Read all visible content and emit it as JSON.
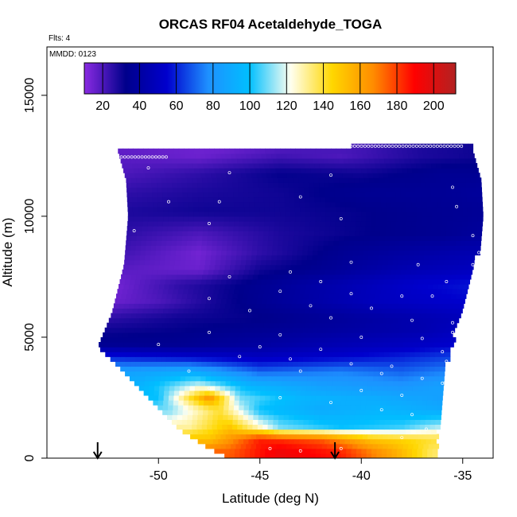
{
  "chart_data": {
    "type": "heatmap",
    "title": "ORCAS RF04 Acetaldehyde_TOGA",
    "flights_label": "Flts: 4",
    "date_label": "MMDD: 0123",
    "xlabel": "Latitude (deg N)",
    "ylabel": "Altitude (m)",
    "xlim": [
      -55.5,
      -33.5
    ],
    "ylim": [
      0,
      17000
    ],
    "x_ticks": [
      -50,
      -45,
      -40,
      -35
    ],
    "y_ticks": [
      0,
      5000,
      10000,
      15000
    ],
    "colorbar": {
      "range": [
        10,
        212
      ],
      "ticks": [
        20,
        40,
        60,
        80,
        100,
        120,
        140,
        160,
        180,
        200
      ],
      "colors": [
        "#8a2be2",
        "#00008b",
        "#0000cd",
        "#1e90ff",
        "#00bfff",
        "#fffff0",
        "#ffd700",
        "#ff8c00",
        "#ff0000",
        "#b22222"
      ]
    },
    "arrow_latitudes": [
      -53.0,
      -41.3
    ],
    "envelope": {
      "left": [
        [
          0,
          -46.5
        ],
        [
          400,
          -47.5
        ],
        [
          1200,
          -49.0
        ],
        [
          2500,
          -50.5
        ],
        [
          3800,
          -52.0
        ],
        [
          4600,
          -53.0
        ],
        [
          6000,
          -52.3
        ],
        [
          8000,
          -51.7
        ],
        [
          10000,
          -51.5
        ],
        [
          11500,
          -51.6
        ],
        [
          12700,
          -52.0
        ]
      ],
      "right": [
        [
          0,
          -36.5
        ],
        [
          1500,
          -36.3
        ],
        [
          3000,
          -36.2
        ],
        [
          4500,
          -35.7
        ],
        [
          6000,
          -35.2
        ],
        [
          8000,
          -34.5
        ],
        [
          10000,
          -34.0
        ],
        [
          11500,
          -34.2
        ],
        [
          13000,
          -34.6
        ]
      ]
    },
    "bands": [
      {
        "alt": 250,
        "pts": [
          [
            -46.5,
            175
          ],
          [
            -44.0,
            195
          ],
          [
            -41.0,
            185
          ],
          [
            -38.5,
            160
          ],
          [
            -36.5,
            135
          ]
        ]
      },
      {
        "alt": 800,
        "pts": [
          [
            -47.5,
            150
          ],
          [
            -45.0,
            185
          ],
          [
            -42.0,
            175
          ],
          [
            -39.5,
            150
          ],
          [
            -36.5,
            140
          ]
        ]
      },
      {
        "alt": 1300,
        "pts": [
          [
            -48.5,
            130
          ],
          [
            -46.5,
            150
          ],
          [
            -44.0,
            110
          ],
          [
            -41.0,
            100
          ],
          [
            -38.0,
            105
          ],
          [
            -36.3,
            115
          ]
        ]
      },
      {
        "alt": 2000,
        "pts": [
          [
            -49.5,
            110
          ],
          [
            -47.0,
            140
          ],
          [
            -45.0,
            100
          ],
          [
            -42.0,
            90
          ],
          [
            -39.0,
            95
          ],
          [
            -36.2,
            90
          ]
        ]
      },
      {
        "alt": 2500,
        "pts": [
          [
            -50.0,
            100
          ],
          [
            -47.5,
            165
          ],
          [
            -46.0,
            110
          ],
          [
            -43.0,
            95
          ],
          [
            -39.0,
            90
          ],
          [
            -36.2,
            85
          ]
        ]
      },
      {
        "alt": 3000,
        "pts": [
          [
            -50.8,
            95
          ],
          [
            -48.0,
            120
          ],
          [
            -45.5,
            95
          ],
          [
            -42.0,
            85
          ],
          [
            -38.0,
            80
          ],
          [
            -36.2,
            85
          ]
        ]
      },
      {
        "alt": 3600,
        "pts": [
          [
            -51.5,
            85
          ],
          [
            -48.5,
            90
          ],
          [
            -45.0,
            70
          ],
          [
            -41.0,
            75
          ],
          [
            -38.0,
            70
          ],
          [
            -35.8,
            75
          ]
        ]
      },
      {
        "alt": 4200,
        "pts": [
          [
            -52.5,
            60
          ],
          [
            -49.0,
            55
          ],
          [
            -45.0,
            50
          ],
          [
            -41.0,
            55
          ],
          [
            -38.0,
            60
          ],
          [
            -35.5,
            65
          ]
        ]
      },
      {
        "alt": 4700,
        "pts": [
          [
            -53.0,
            35
          ],
          [
            -49.0,
            35
          ],
          [
            -45.0,
            40
          ],
          [
            -42.0,
            45
          ],
          [
            -38.0,
            50
          ],
          [
            -35.3,
            55
          ]
        ]
      },
      {
        "alt": 5300,
        "pts": [
          [
            -53.0,
            30
          ],
          [
            -49.0,
            32
          ],
          [
            -45.0,
            35
          ],
          [
            -41.0,
            40
          ],
          [
            -37.0,
            45
          ],
          [
            -35.2,
            50
          ]
        ]
      },
      {
        "alt": 5800,
        "pts": [
          [
            -52.7,
            25
          ],
          [
            -49.0,
            30
          ],
          [
            -45.0,
            32
          ],
          [
            -41.0,
            38
          ],
          [
            -37.0,
            45
          ],
          [
            -35.2,
            48
          ]
        ]
      },
      {
        "alt": 6500,
        "pts": [
          [
            -52.3,
            15
          ],
          [
            -50.0,
            20
          ],
          [
            -47.0,
            30
          ],
          [
            -43.0,
            40
          ],
          [
            -39.0,
            50
          ],
          [
            -35.0,
            55
          ]
        ]
      },
      {
        "alt": 7200,
        "pts": [
          [
            -52.0,
            14
          ],
          [
            -49.0,
            25
          ],
          [
            -45.0,
            35
          ],
          [
            -41.0,
            45
          ],
          [
            -37.0,
            55
          ],
          [
            -34.8,
            58
          ]
        ]
      },
      {
        "alt": 7800,
        "pts": [
          [
            -51.8,
            18
          ],
          [
            -48.0,
            15
          ],
          [
            -45.0,
            30
          ],
          [
            -42.0,
            35
          ],
          [
            -38.0,
            45
          ],
          [
            -34.6,
            50
          ]
        ]
      },
      {
        "alt": 8500,
        "pts": [
          [
            -51.7,
            22
          ],
          [
            -48.0,
            14
          ],
          [
            -45.0,
            25
          ],
          [
            -41.0,
            35
          ],
          [
            -38.0,
            40
          ],
          [
            -34.5,
            45
          ]
        ]
      },
      {
        "alt": 9300,
        "pts": [
          [
            -51.6,
            25
          ],
          [
            -48.0,
            20
          ],
          [
            -44.0,
            28
          ],
          [
            -40.0,
            32
          ],
          [
            -36.0,
            35
          ],
          [
            -34.2,
            38
          ]
        ]
      },
      {
        "alt": 10200,
        "pts": [
          [
            -51.5,
            28
          ],
          [
            -48.0,
            30
          ],
          [
            -44.0,
            30
          ],
          [
            -40.0,
            32
          ],
          [
            -36.0,
            35
          ],
          [
            -34.0,
            36
          ]
        ]
      },
      {
        "alt": 11000,
        "pts": [
          [
            -51.5,
            25
          ],
          [
            -48.0,
            28
          ],
          [
            -44.0,
            30
          ],
          [
            -40.0,
            35
          ],
          [
            -36.0,
            36
          ],
          [
            -34.1,
            38
          ]
        ]
      },
      {
        "alt": 11800,
        "pts": [
          [
            -51.6,
            20
          ],
          [
            -48.0,
            25
          ],
          [
            -44.0,
            32
          ],
          [
            -40.0,
            30
          ],
          [
            -36.0,
            35
          ],
          [
            -34.3,
            35
          ]
        ]
      },
      {
        "alt": 12500,
        "pts": [
          [
            -52.0,
            18
          ],
          [
            -48.0,
            15
          ],
          [
            -44.0,
            22
          ],
          [
            -41.0,
            20
          ],
          [
            -37.0,
            28
          ],
          [
            -34.6,
            30
          ]
        ]
      },
      {
        "alt": 12900,
        "pts": [
          [
            -51.0,
            16
          ],
          [
            -47.0,
            14
          ],
          [
            -43.0,
            20
          ],
          [
            -40.0,
            22
          ],
          [
            -37.0,
            28
          ],
          [
            -34.6,
            30
          ]
        ]
      }
    ],
    "track_segments": [
      {
        "alt": 12450,
        "x0": -52.0,
        "x1": -49.5
      },
      {
        "alt": 12900,
        "x0": -40.5,
        "x1": -35.0
      }
    ],
    "sample_points": [
      [
        -50.5,
        12000
      ],
      [
        -46.5,
        11800
      ],
      [
        -41.5,
        11700
      ],
      [
        -43.0,
        10800
      ],
      [
        -47.0,
        10600
      ],
      [
        -49.5,
        10600
      ],
      [
        -35.5,
        11200
      ],
      [
        -35.3,
        10400
      ],
      [
        -41.0,
        9900
      ],
      [
        -47.5,
        9700
      ],
      [
        -51.2,
        9400
      ],
      [
        -34.5,
        9200
      ],
      [
        -34.2,
        8500
      ],
      [
        -34.5,
        8000
      ],
      [
        -40.5,
        8100
      ],
      [
        -37.2,
        8000
      ],
      [
        -43.5,
        7700
      ],
      [
        -46.5,
        7500
      ],
      [
        -42.0,
        7300
      ],
      [
        -35.8,
        7300
      ],
      [
        -44.0,
        6900
      ],
      [
        -40.5,
        6800
      ],
      [
        -38.0,
        6700
      ],
      [
        -36.5,
        6700
      ],
      [
        -47.5,
        6600
      ],
      [
        -42.5,
        6300
      ],
      [
        -39.5,
        6200
      ],
      [
        -45.5,
        6100
      ],
      [
        -41.5,
        5800
      ],
      [
        -37.5,
        5700
      ],
      [
        -35.5,
        5600
      ],
      [
        -47.5,
        5200
      ],
      [
        -44.0,
        5100
      ],
      [
        -40.0,
        5000
      ],
      [
        -37.0,
        4950
      ],
      [
        -35.5,
        5200
      ],
      [
        -50.0,
        4700
      ],
      [
        -45.0,
        4600
      ],
      [
        -42.0,
        4500
      ],
      [
        -36.0,
        4400
      ],
      [
        -46.0,
        4200
      ],
      [
        -43.5,
        4100
      ],
      [
        -40.5,
        3900
      ],
      [
        -38.5,
        3800
      ],
      [
        -35.8,
        4000
      ],
      [
        -48.5,
        3600
      ],
      [
        -43.0,
        3600
      ],
      [
        -39.0,
        3500
      ],
      [
        -37.0,
        3300
      ],
      [
        -36.0,
        3100
      ],
      [
        -47.5,
        2900
      ],
      [
        -40.0,
        2800
      ],
      [
        -38.0,
        2600
      ],
      [
        -44.0,
        2500
      ],
      [
        -41.5,
        2300
      ],
      [
        -39.0,
        2000
      ],
      [
        -37.5,
        1800
      ],
      [
        -36.8,
        1200
      ],
      [
        -38.0,
        850
      ],
      [
        -44.5,
        400
      ],
      [
        -41.0,
        400
      ],
      [
        -43.0,
        300
      ]
    ]
  }
}
